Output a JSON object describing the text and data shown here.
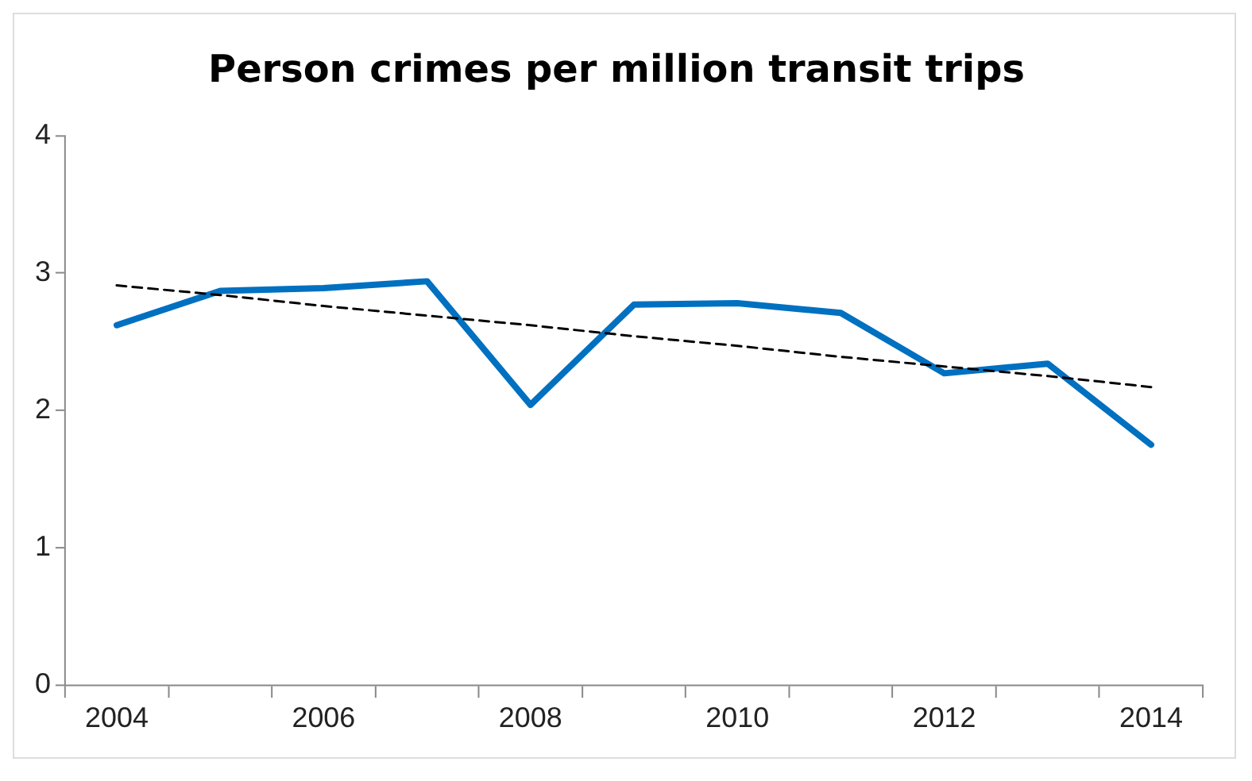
{
  "chart_data": {
    "type": "line",
    "title": "Person crimes per million transit trips",
    "categories": [
      "2004",
      null,
      "2006",
      null,
      "2008",
      null,
      "2010",
      null,
      "2012",
      null,
      "2014"
    ],
    "series": [
      {
        "color": "#0070c0",
        "values": [
          2.62,
          2.87,
          2.89,
          2.94,
          2.04,
          2.77,
          2.78,
          2.71,
          2.27,
          2.34,
          1.75
        ],
        "line_style": "solid"
      },
      {
        "color": "#000000",
        "values": [
          2.91,
          2.84,
          2.76,
          2.69,
          2.62,
          2.54,
          2.47,
          2.39,
          2.32,
          2.25,
          2.17
        ],
        "line_style": "dashed"
      }
    ],
    "ylim": [
      0,
      4
    ],
    "yticks": [
      0,
      1,
      2,
      3,
      4
    ],
    "grid": false,
    "legend": false,
    "marker": "none"
  }
}
